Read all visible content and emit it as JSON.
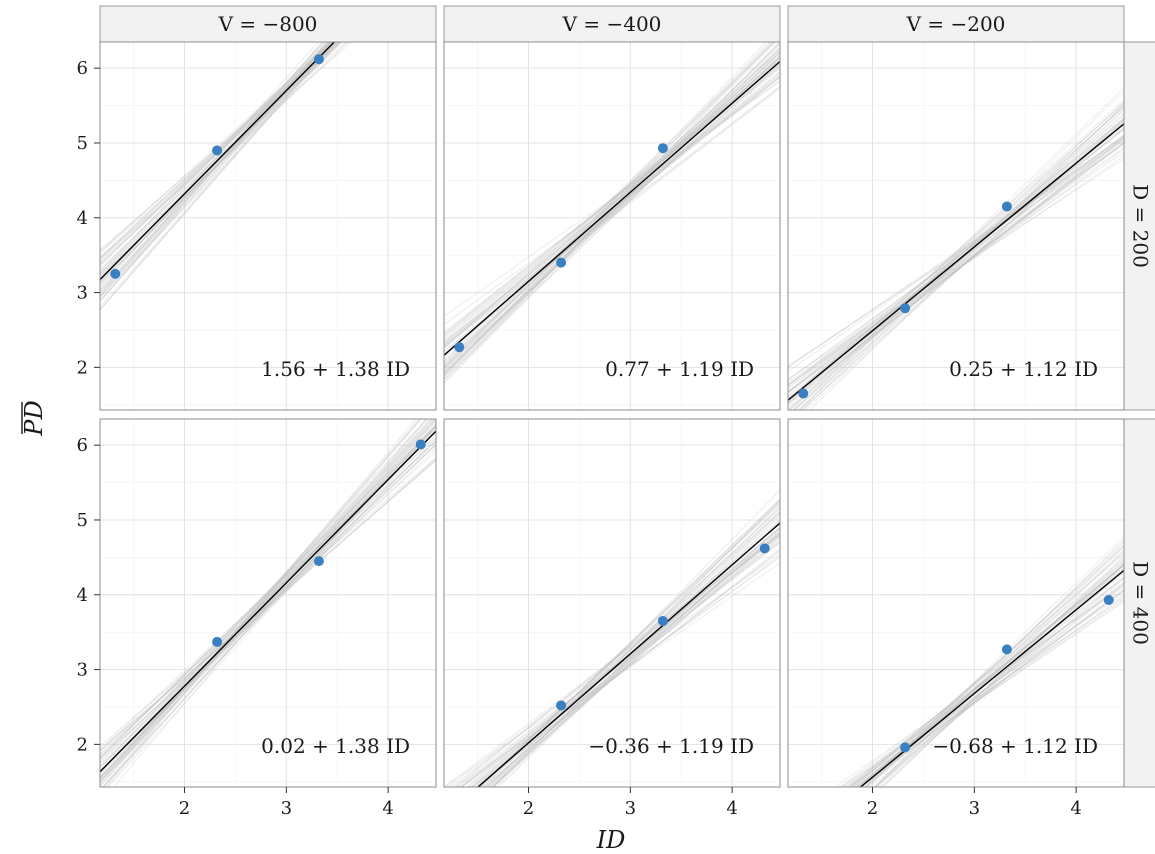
{
  "chart_data": {
    "type": "scatter",
    "xlabel": "ID",
    "ylabel": "PD",
    "ylabel_overline": true,
    "xlim": [
      1.17,
      4.47
    ],
    "ylim": [
      1.43,
      6.35
    ],
    "x_ticks": [
      2,
      3,
      4
    ],
    "y_ticks": [
      2,
      3,
      4,
      5,
      6
    ],
    "grid": true,
    "column_facets": [
      "V = −800",
      "V = −400",
      "V = −200"
    ],
    "row_facets": [
      "D = 200",
      "D = 400"
    ],
    "point_color": "#3a7fc1",
    "fit_line_color": "#000000",
    "posterior_line_color": "#bdbdbd",
    "panels": [
      {
        "row": 0,
        "col": 0,
        "points": [
          [
            1.32,
            3.25
          ],
          [
            2.32,
            4.9
          ],
          [
            3.32,
            6.12
          ]
        ],
        "intercept": 1.56,
        "slope": 1.38,
        "label": "1.56 + 1.38 ID"
      },
      {
        "row": 0,
        "col": 1,
        "points": [
          [
            1.32,
            2.27
          ],
          [
            2.32,
            3.4
          ],
          [
            3.32,
            4.93
          ]
        ],
        "intercept": 0.77,
        "slope": 1.19,
        "label": "0.77 + 1.19 ID"
      },
      {
        "row": 0,
        "col": 2,
        "points": [
          [
            1.32,
            1.65
          ],
          [
            2.32,
            2.79
          ],
          [
            3.32,
            4.15
          ]
        ],
        "intercept": 0.25,
        "slope": 1.12,
        "label": "0.25 + 1.12 ID"
      },
      {
        "row": 1,
        "col": 0,
        "points": [
          [
            2.32,
            3.37
          ],
          [
            3.32,
            4.45
          ],
          [
            4.32,
            6.01
          ]
        ],
        "intercept": 0.02,
        "slope": 1.38,
        "label": "0.02 + 1.38 ID"
      },
      {
        "row": 1,
        "col": 1,
        "points": [
          [
            2.32,
            2.52
          ],
          [
            3.32,
            3.65
          ],
          [
            4.32,
            4.62
          ]
        ],
        "intercept": -0.36,
        "slope": 1.19,
        "label": "−0.36 + 1.19 ID"
      },
      {
        "row": 1,
        "col": 2,
        "points": [
          [
            2.32,
            1.96
          ],
          [
            3.32,
            3.27
          ],
          [
            4.32,
            3.93
          ]
        ],
        "intercept": -0.68,
        "slope": 1.12,
        "label": "−0.68 + 1.12 ID"
      }
    ]
  }
}
